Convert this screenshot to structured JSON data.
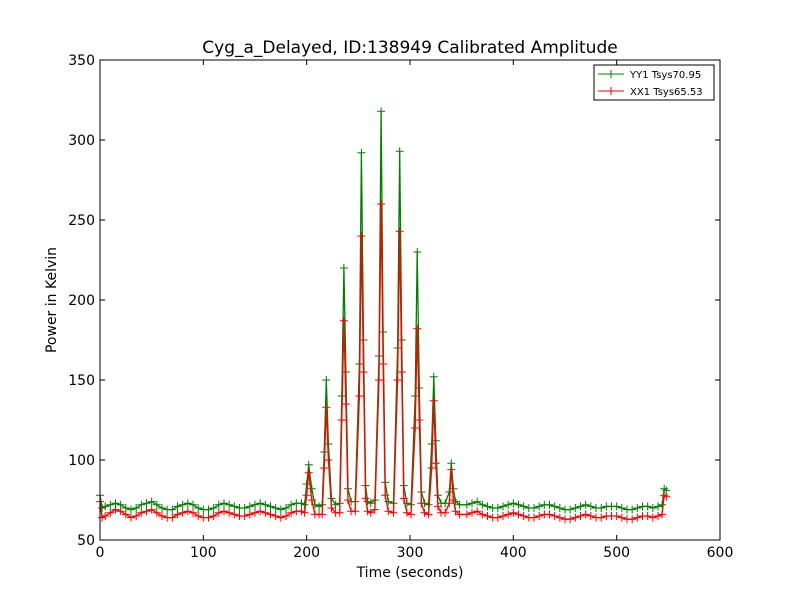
{
  "chart_data": {
    "type": "line",
    "title": "Cyg_a_Delayed, ID:138949 Calibrated Amplitude",
    "xlabel": "Time (seconds)",
    "ylabel": "Power in Kelvin",
    "xlim": [
      0,
      600
    ],
    "ylim": [
      50,
      350
    ],
    "xticks": [
      0,
      100,
      200,
      300,
      400,
      500,
      600
    ],
    "yticks": [
      50,
      100,
      150,
      200,
      250,
      300,
      350
    ],
    "grid": false,
    "legend_position": "top-right",
    "marker": "plus",
    "series": [
      {
        "name": "YY1 Tsys70.95",
        "color": "#008000",
        "x": [
          0,
          2,
          5,
          10,
          15,
          20,
          25,
          30,
          35,
          40,
          45,
          50,
          55,
          60,
          65,
          70,
          75,
          80,
          85,
          90,
          95,
          100,
          105,
          110,
          115,
          120,
          125,
          130,
          135,
          140,
          145,
          150,
          155,
          160,
          165,
          170,
          175,
          180,
          185,
          190,
          195,
          198,
          200,
          202,
          205,
          208,
          212,
          215,
          217,
          219,
          221,
          224,
          228,
          232,
          234,
          236,
          238,
          240,
          243,
          247,
          251,
          253,
          255,
          257,
          259,
          262,
          266,
          270,
          272,
          274,
          276,
          279,
          284,
          288,
          290,
          292,
          294,
          297,
          301,
          305,
          307,
          309,
          311,
          314,
          318,
          321,
          323,
          325,
          327,
          330,
          334,
          338,
          340,
          342,
          344,
          348,
          355,
          360,
          365,
          370,
          375,
          380,
          385,
          390,
          395,
          400,
          405,
          410,
          415,
          420,
          425,
          430,
          435,
          440,
          445,
          450,
          455,
          460,
          465,
          470,
          475,
          480,
          485,
          490,
          495,
          500,
          505,
          510,
          515,
          520,
          525,
          530,
          535,
          540,
          544,
          546,
          548
        ],
        "y": [
          78,
          70,
          71,
          72,
          73,
          72,
          70,
          69,
          70,
          72,
          73,
          74,
          72,
          70,
          69,
          69,
          71,
          72,
          73,
          72,
          70,
          69,
          69,
          70,
          72,
          73,
          72,
          71,
          70,
          70,
          71,
          72,
          73,
          72,
          71,
          70,
          69,
          70,
          72,
          73,
          73,
          72,
          85,
          97,
          82,
          72,
          71,
          72,
          105,
          150,
          110,
          76,
          72,
          73,
          140,
          220,
          155,
          82,
          74,
          74,
          160,
          292,
          175,
          84,
          74,
          73,
          75,
          165,
          318,
          180,
          86,
          74,
          73,
          170,
          293,
          175,
          84,
          73,
          72,
          140,
          230,
          145,
          80,
          73,
          72,
          110,
          152,
          112,
          78,
          73,
          73,
          80,
          98,
          82,
          74,
          72,
          72,
          73,
          74,
          72,
          71,
          70,
          70,
          71,
          72,
          73,
          72,
          71,
          70,
          70,
          71,
          72,
          72,
          71,
          70,
          69,
          69,
          70,
          71,
          72,
          71,
          70,
          70,
          71,
          71,
          71,
          70,
          69,
          69,
          70,
          71,
          71,
          70,
          71,
          72,
          82,
          81
        ]
      },
      {
        "name": "XX1 Tsys65.53",
        "color": "#ff0000",
        "x": [
          0,
          2,
          5,
          10,
          15,
          20,
          25,
          30,
          35,
          40,
          45,
          50,
          55,
          60,
          65,
          70,
          75,
          80,
          85,
          90,
          95,
          100,
          105,
          110,
          115,
          120,
          125,
          130,
          135,
          140,
          145,
          150,
          155,
          160,
          165,
          170,
          175,
          180,
          185,
          190,
          195,
          198,
          200,
          202,
          205,
          208,
          212,
          215,
          217,
          219,
          221,
          224,
          228,
          232,
          234,
          236,
          238,
          240,
          243,
          247,
          251,
          253,
          255,
          257,
          259,
          262,
          266,
          270,
          272,
          274,
          276,
          279,
          284,
          288,
          290,
          292,
          294,
          297,
          301,
          305,
          307,
          309,
          311,
          314,
          318,
          321,
          323,
          325,
          327,
          330,
          334,
          338,
          340,
          342,
          344,
          348,
          355,
          360,
          365,
          370,
          375,
          380,
          385,
          390,
          395,
          400,
          405,
          410,
          415,
          420,
          425,
          430,
          435,
          440,
          445,
          450,
          455,
          460,
          465,
          470,
          475,
          480,
          485,
          490,
          495,
          500,
          505,
          510,
          515,
          520,
          525,
          530,
          535,
          540,
          544,
          546,
          548
        ],
        "y": [
          74,
          64,
          65,
          67,
          69,
          68,
          66,
          64,
          65,
          67,
          68,
          69,
          67,
          65,
          64,
          64,
          66,
          67,
          68,
          67,
          65,
          64,
          64,
          65,
          67,
          68,
          67,
          66,
          65,
          65,
          66,
          67,
          68,
          67,
          66,
          65,
          64,
          65,
          67,
          68,
          68,
          67,
          78,
          92,
          75,
          66,
          66,
          66,
          95,
          133,
          100,
          70,
          67,
          67,
          125,
          187,
          135,
          75,
          68,
          68,
          140,
          240,
          155,
          76,
          68,
          67,
          69,
          150,
          260,
          160,
          78,
          68,
          67,
          150,
          243,
          155,
          76,
          67,
          66,
          120,
          182,
          125,
          73,
          67,
          66,
          95,
          137,
          98,
          71,
          67,
          67,
          73,
          94,
          75,
          68,
          66,
          66,
          67,
          68,
          66,
          65,
          64,
          64,
          65,
          66,
          67,
          66,
          65,
          64,
          64,
          65,
          66,
          66,
          65,
          64,
          63,
          63,
          64,
          65,
          66,
          65,
          64,
          64,
          65,
          65,
          65,
          64,
          63,
          63,
          64,
          65,
          65,
          64,
          65,
          66,
          78,
          77
        ]
      }
    ]
  }
}
